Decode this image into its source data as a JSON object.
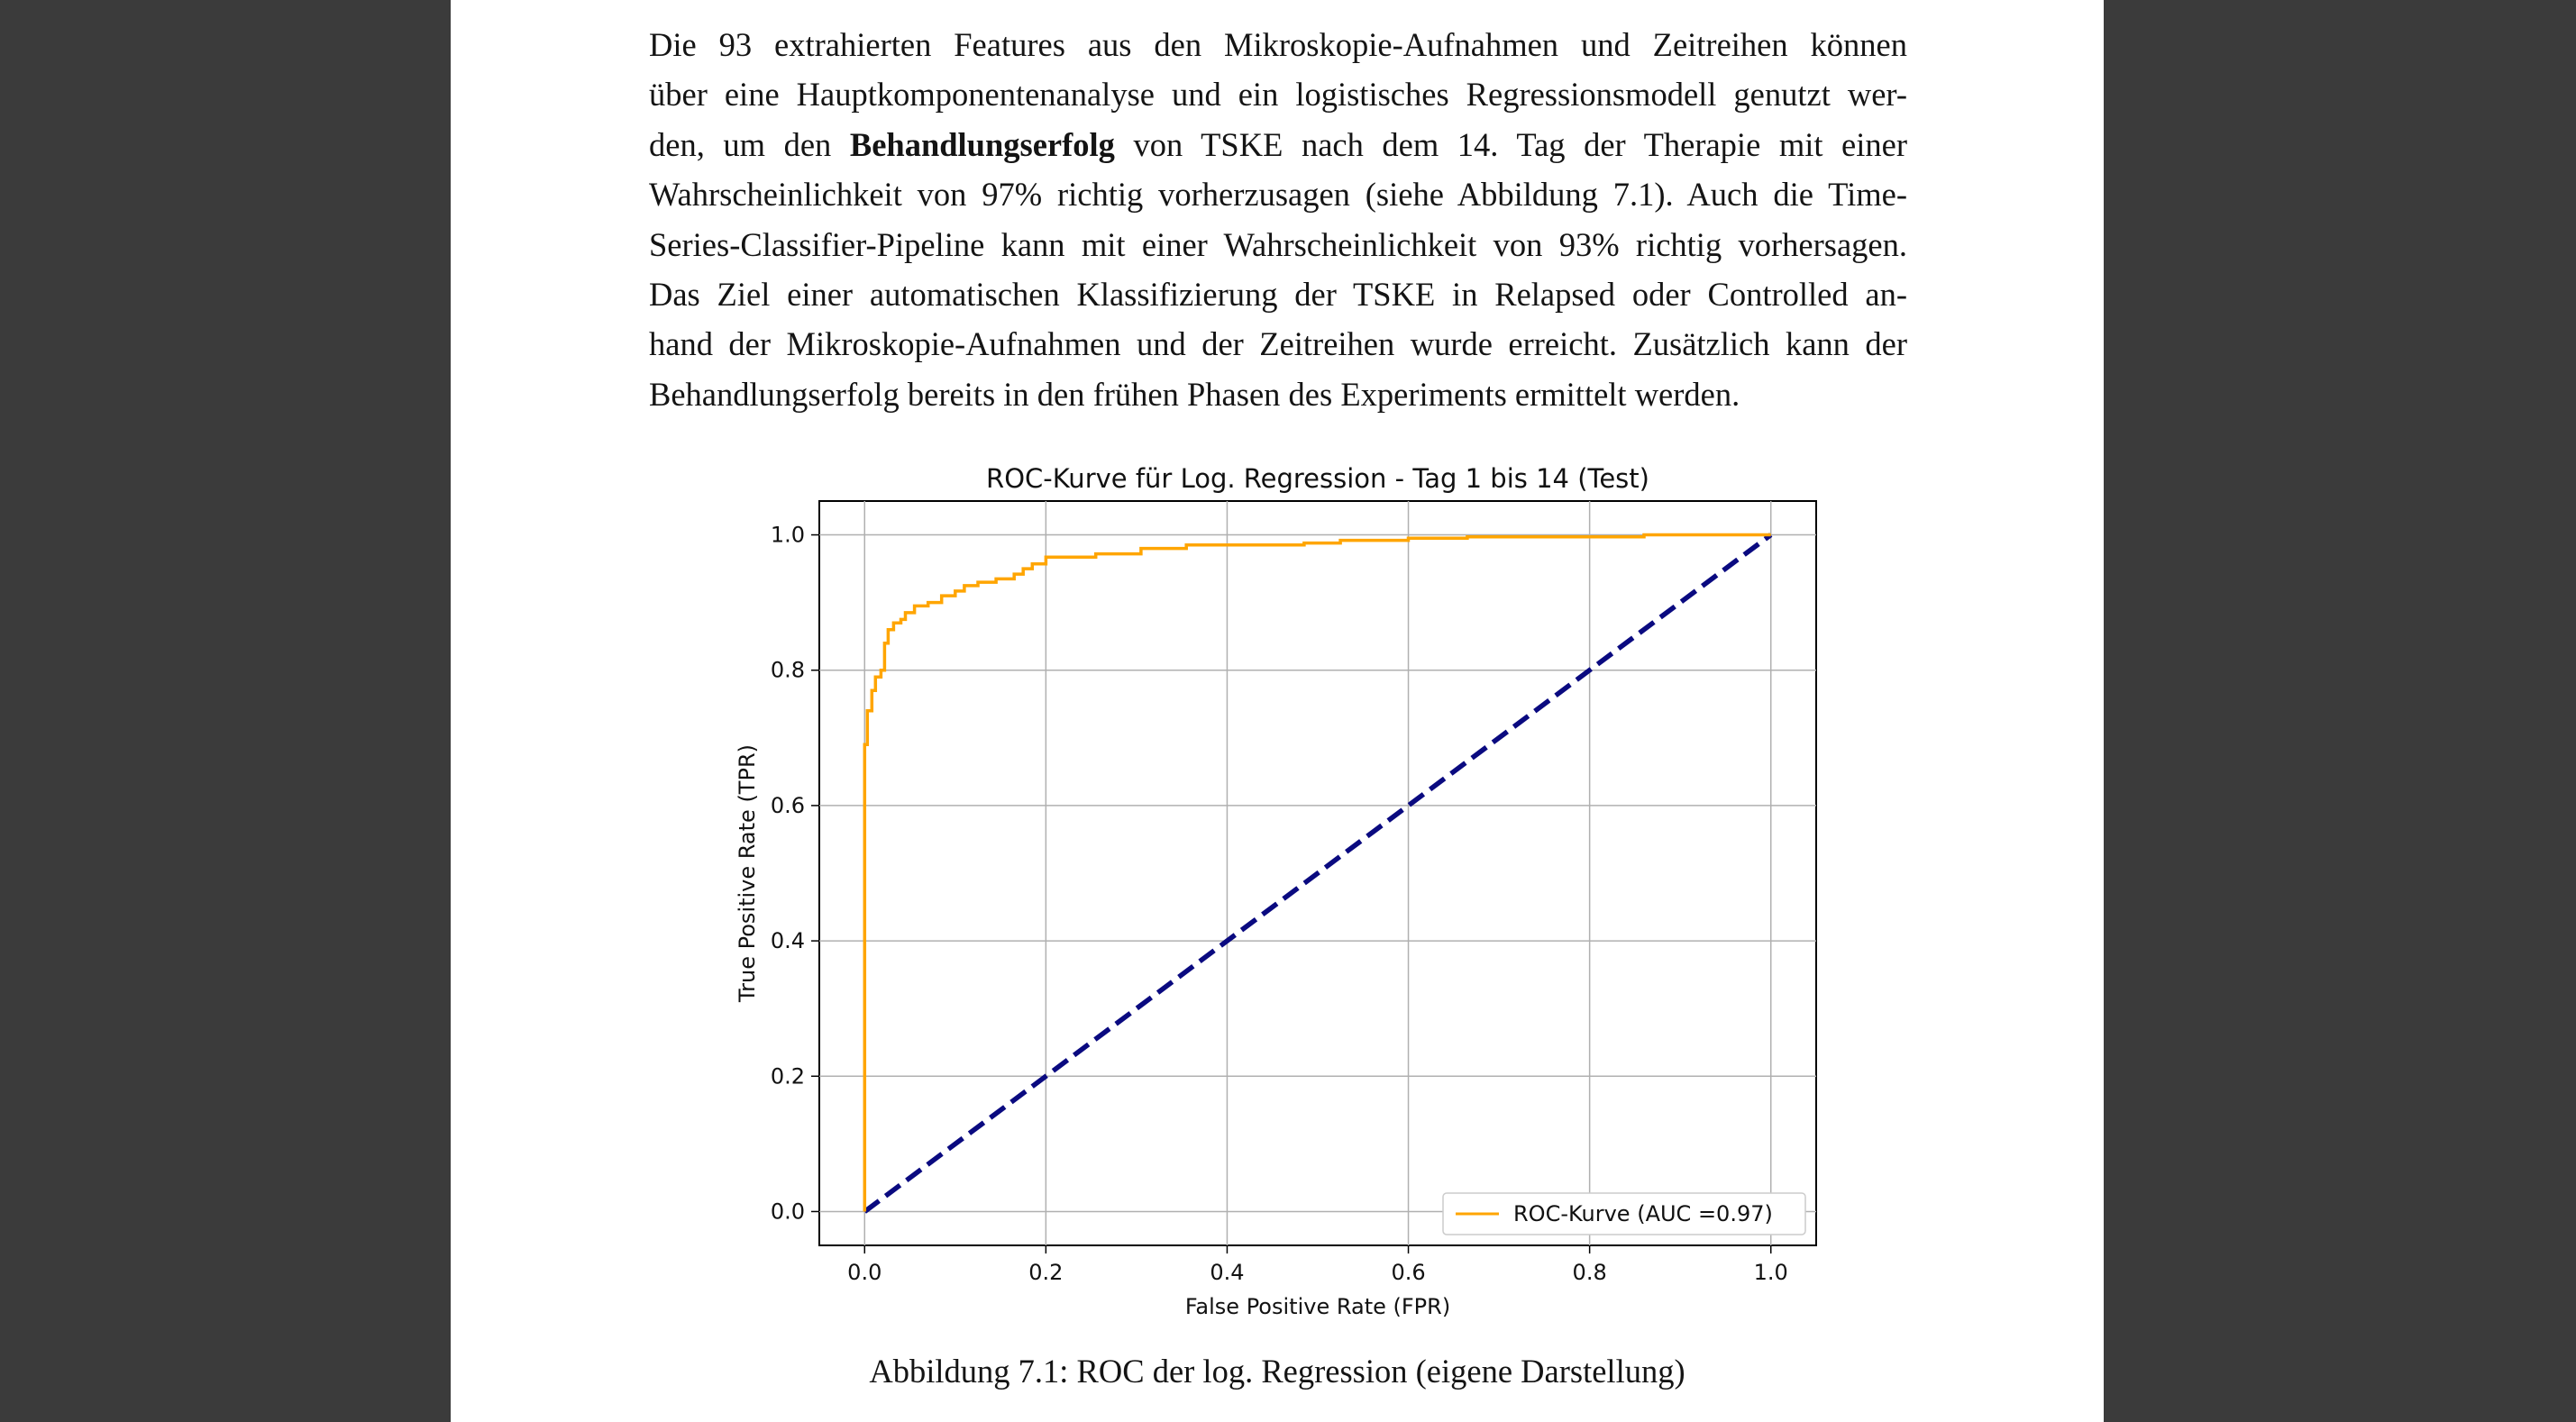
{
  "document": {
    "paragraph_lines": [
      {
        "text": "Die 93 extrahierten Features aus den Mikroskopie-Aufnahmen und Zeitreihen können",
        "justify": true
      },
      {
        "text": "über eine Hauptkomponentenanalyse und ein logistisches Regressionsmodell genutzt wer-",
        "justify": true
      },
      {
        "pre": "den, um den ",
        "bold": "Behandlungserfolg",
        "post": " von TSKE nach dem 14. Tag der Therapie mit einer",
        "justify": true
      },
      {
        "text": "Wahrscheinlichkeit von 97% richtig vorherzusagen (siehe Abbildung 7.1). Auch die Time-",
        "justify": true
      },
      {
        "text": "Series-Classifier-Pipeline kann mit einer Wahrscheinlichkeit von 93% richtig vorhersagen.",
        "justify": true
      },
      {
        "text": "Das Ziel einer automatischen Klassifizierung der TSKE in Relapsed oder Controlled an-",
        "justify": true
      },
      {
        "text": "hand der Mikroskopie-Aufnahmen und der Zeitreihen wurde erreicht. Zusätzlich kann der",
        "justify": true
      },
      {
        "text": "Behandlungserfolg bereits in den frühen Phasen des Experiments ermittelt werden.",
        "justify": false
      }
    ],
    "caption": "Abbildung 7.1: ROC der log. Regression (eigene Darstellung)"
  },
  "chart_data": {
    "type": "line",
    "title": "ROC-Kurve für Log. Regression - Tag 1 bis 14 (Test)",
    "xlabel": "False Positive Rate (FPR)",
    "ylabel": "True Positive Rate (TPR)",
    "xlim": [
      -0.05,
      1.05
    ],
    "ylim": [
      -0.05,
      1.05
    ],
    "xticks": [
      "0.0",
      "0.2",
      "0.4",
      "0.6",
      "0.8",
      "1.0"
    ],
    "yticks": [
      "0.0",
      "0.2",
      "0.4",
      "0.6",
      "0.8",
      "1.0"
    ],
    "grid": true,
    "legend_position": "lower-right",
    "series": [
      {
        "name": "ROC-Kurve (AUC =0.97)",
        "color": "#ffa500",
        "style": "solid",
        "points": [
          [
            0.0,
            0.0
          ],
          [
            0.0,
            0.69
          ],
          [
            0.003,
            0.69
          ],
          [
            0.003,
            0.74
          ],
          [
            0.008,
            0.74
          ],
          [
            0.008,
            0.77
          ],
          [
            0.012,
            0.77
          ],
          [
            0.012,
            0.79
          ],
          [
            0.018,
            0.79
          ],
          [
            0.018,
            0.8
          ],
          [
            0.022,
            0.8
          ],
          [
            0.022,
            0.84
          ],
          [
            0.026,
            0.84
          ],
          [
            0.026,
            0.86
          ],
          [
            0.032,
            0.86
          ],
          [
            0.032,
            0.87
          ],
          [
            0.04,
            0.87
          ],
          [
            0.04,
            0.875
          ],
          [
            0.045,
            0.875
          ],
          [
            0.045,
            0.885
          ],
          [
            0.055,
            0.885
          ],
          [
            0.055,
            0.895
          ],
          [
            0.07,
            0.895
          ],
          [
            0.07,
            0.9
          ],
          [
            0.085,
            0.9
          ],
          [
            0.085,
            0.91
          ],
          [
            0.1,
            0.91
          ],
          [
            0.1,
            0.917
          ],
          [
            0.11,
            0.917
          ],
          [
            0.11,
            0.925
          ],
          [
            0.125,
            0.925
          ],
          [
            0.125,
            0.93
          ],
          [
            0.145,
            0.93
          ],
          [
            0.145,
            0.935
          ],
          [
            0.165,
            0.935
          ],
          [
            0.165,
            0.942
          ],
          [
            0.175,
            0.942
          ],
          [
            0.175,
            0.95
          ],
          [
            0.185,
            0.95
          ],
          [
            0.185,
            0.957
          ],
          [
            0.2,
            0.957
          ],
          [
            0.2,
            0.967
          ],
          [
            0.255,
            0.967
          ],
          [
            0.255,
            0.972
          ],
          [
            0.305,
            0.972
          ],
          [
            0.305,
            0.98
          ],
          [
            0.355,
            0.98
          ],
          [
            0.355,
            0.985
          ],
          [
            0.485,
            0.985
          ],
          [
            0.485,
            0.988
          ],
          [
            0.525,
            0.988
          ],
          [
            0.525,
            0.992
          ],
          [
            0.6,
            0.992
          ],
          [
            0.6,
            0.995
          ],
          [
            0.665,
            0.995
          ],
          [
            0.665,
            0.997
          ],
          [
            0.86,
            0.997
          ],
          [
            0.86,
            1.0
          ],
          [
            1.0,
            1.0
          ]
        ]
      },
      {
        "name": "",
        "color": "#0a0a80",
        "style": "dashed",
        "points": [
          [
            0.0,
            0.0
          ],
          [
            1.0,
            1.0
          ]
        ]
      }
    ]
  }
}
